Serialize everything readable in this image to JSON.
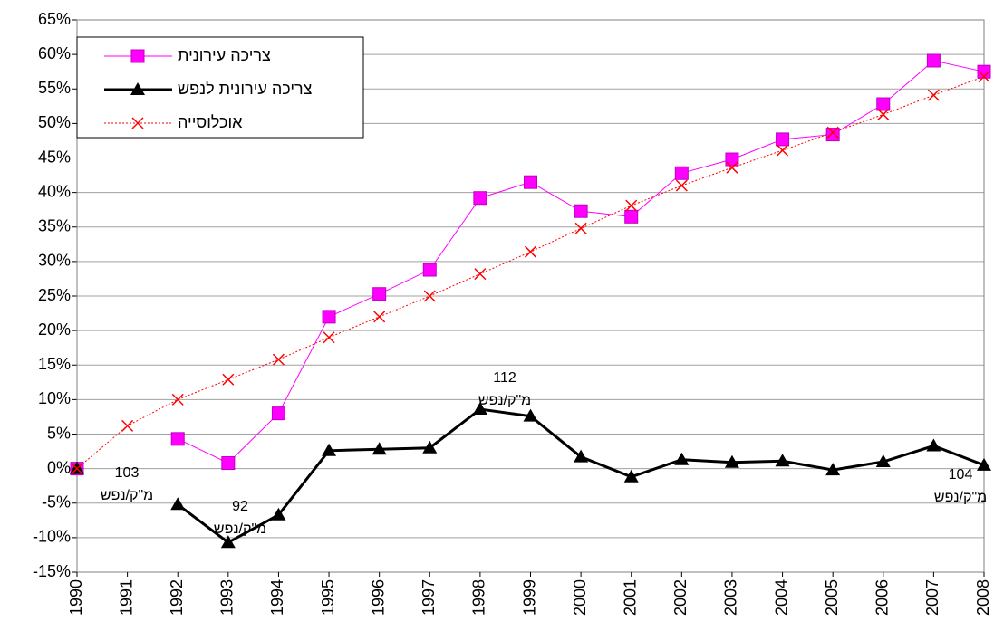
{
  "chart_data": {
    "type": "line",
    "categories": [
      "1990",
      "1991",
      "1992",
      "1993",
      "1994",
      "1995",
      "1996",
      "1997",
      "1998",
      "1999",
      "2000",
      "2001",
      "2002",
      "2003",
      "2004",
      "2005",
      "2006",
      "2007",
      "2008"
    ],
    "series": [
      {
        "name": "צריכה עירונית",
        "color": "#ff00ff",
        "marker": "square",
        "line_width": 1,
        "dash": "none",
        "values": [
          0,
          null,
          4.3,
          0.8,
          8,
          22,
          25.3,
          28.8,
          39.2,
          41.5,
          37.3,
          36.5,
          42.8,
          44.8,
          47.7,
          48.4,
          52.8,
          59.1,
          57.5
        ]
      },
      {
        "name": "צריכה עירונית לנפש",
        "color": "#000000",
        "marker": "triangle",
        "line_width": 3,
        "dash": "none",
        "values": [
          0,
          null,
          -5.2,
          -10.7,
          -6.7,
          2.6,
          2.8,
          3.0,
          8.6,
          7.6,
          1.7,
          -1.2,
          1.3,
          0.9,
          1.1,
          -0.2,
          1.0,
          3.3,
          0.5
        ]
      },
      {
        "name": "אוכלוסייה",
        "color": "#ff0000",
        "marker": "x",
        "line_width": 1,
        "dash": "2 2",
        "values": [
          0,
          6.2,
          10,
          12.9,
          15.8,
          19,
          22,
          25,
          28.2,
          31.4,
          34.8,
          38.1,
          41,
          43.6,
          46.1,
          48.7,
          51.3,
          54.1,
          56.8
        ]
      }
    ],
    "ylim": [
      -15,
      65
    ],
    "yticks": [
      {
        "value": -15,
        "label": "-15%"
      },
      {
        "value": -10,
        "label": "-10%"
      },
      {
        "value": -5,
        "label": "-5%"
      },
      {
        "value": 0,
        "label": "0%"
      },
      {
        "value": 5,
        "label": "5%"
      },
      {
        "value": 10,
        "label": "10%"
      },
      {
        "value": 15,
        "label": "15%"
      },
      {
        "value": 20,
        "label": "20%"
      },
      {
        "value": 25,
        "label": "25%"
      },
      {
        "value": 30,
        "label": "30%"
      },
      {
        "value": 35,
        "label": "35%"
      },
      {
        "value": 40,
        "label": "40%"
      },
      {
        "value": 45,
        "label": "45%"
      },
      {
        "value": 50,
        "label": "50%"
      },
      {
        "value": 55,
        "label": "55%"
      },
      {
        "value": 60,
        "label": "60%"
      },
      {
        "value": 65,
        "label": "65%"
      }
    ],
    "grid": true,
    "legend": "upper left",
    "annotations": [
      {
        "lines": [
          "103",
          "מ\"ק/נפש"
        ]
      },
      {
        "lines": [
          "92",
          "מ\"ק/נפש"
        ]
      },
      {
        "lines": [
          "112",
          "מ\"ק/נפש"
        ]
      },
      {
        "lines": [
          "104",
          "מ\"ק/נפש"
        ]
      }
    ]
  }
}
